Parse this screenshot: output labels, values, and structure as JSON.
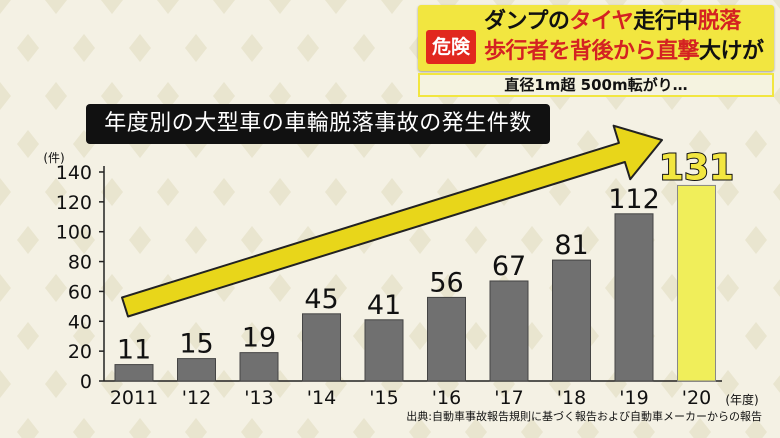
{
  "colors": {
    "background": "#f4f1e4",
    "bar": "#707070",
    "highlight_bar": "#f0ee5a",
    "arrow": "#e8d61a",
    "accent_red": "#d42222",
    "banner_yellow": "#f2e640"
  },
  "banner": {
    "badge": "危険",
    "line1": [
      "ダンプの",
      "タイヤ",
      "走行中",
      "脱落"
    ],
    "line2": [
      "歩行者を背後から",
      "直撃",
      "大けが"
    ],
    "subheadline": "直径1m超 500m転がり…"
  },
  "source": "出典:自動車事故報告規則に基づく報告および自動車メーカーからの報告",
  "chart_data": {
    "type": "bar",
    "title": "年度別の大型車の車輪脱落事故の発生件数",
    "ylabel": "(件)",
    "xlabel": "(年度)",
    "categories": [
      "2011",
      "'12",
      "'13",
      "'14",
      "'15",
      "'16",
      "'17",
      "'18",
      "'19",
      "'20"
    ],
    "values": [
      11,
      15,
      19,
      45,
      41,
      56,
      67,
      81,
      112,
      131
    ],
    "highlight_index": 9,
    "ylim": [
      0,
      140
    ],
    "yticks": [
      0,
      20,
      40,
      60,
      80,
      100,
      120,
      140
    ],
    "grid": false,
    "legend": "none",
    "annotation": "rising trend arrow"
  }
}
